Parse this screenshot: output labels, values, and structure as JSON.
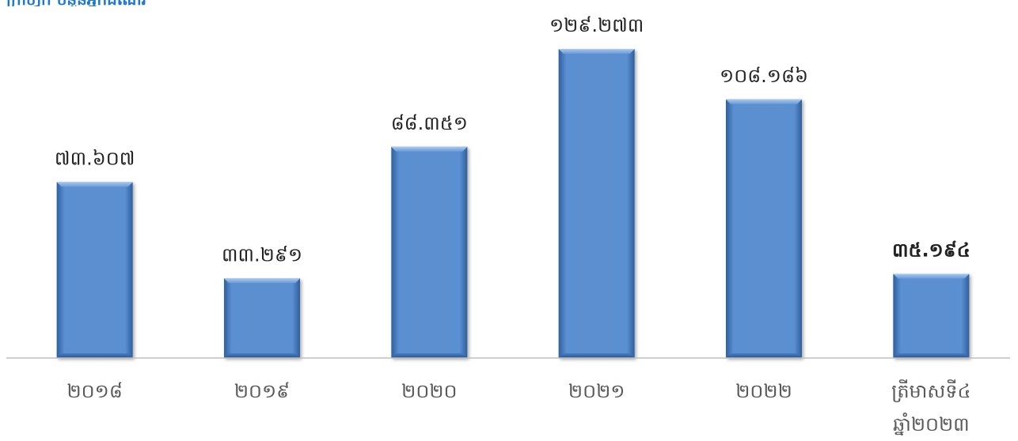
{
  "title_fragment": "ក្រាហ្វិក ចំនួនអ្នកដំណើរ",
  "colors": {
    "bar": "#5b8fd0",
    "bar_light": "#8fb6e6",
    "bar_dark": "#2f5f9e",
    "baseline": "#bfbfbf",
    "value_label": "#222222",
    "category_label": "#595959",
    "title": "#1f77d0"
  },
  "chart_data": {
    "type": "bar",
    "categories": [
      "២០១៨",
      "២០១៩",
      "២០២០",
      "២០២១",
      "២០២២",
      "ត្រីមាសទី៤\nឆ្នាំ២០២៣"
    ],
    "values": [
      73607,
      33291,
      88351,
      129273,
      108186,
      35194
    ],
    "value_labels": [
      "៧៣.៦០៧",
      "៣៣.២៩១",
      "៨៨.៣៥១",
      "១២៩.២៧៣",
      "១០៨.១៨៦",
      "៣៥.១៩៤"
    ],
    "bold_labels": [
      false,
      false,
      false,
      false,
      false,
      true
    ],
    "xlabel": "",
    "ylabel": "",
    "ylim": [
      0,
      129273
    ],
    "grid": false,
    "legend": "none"
  }
}
